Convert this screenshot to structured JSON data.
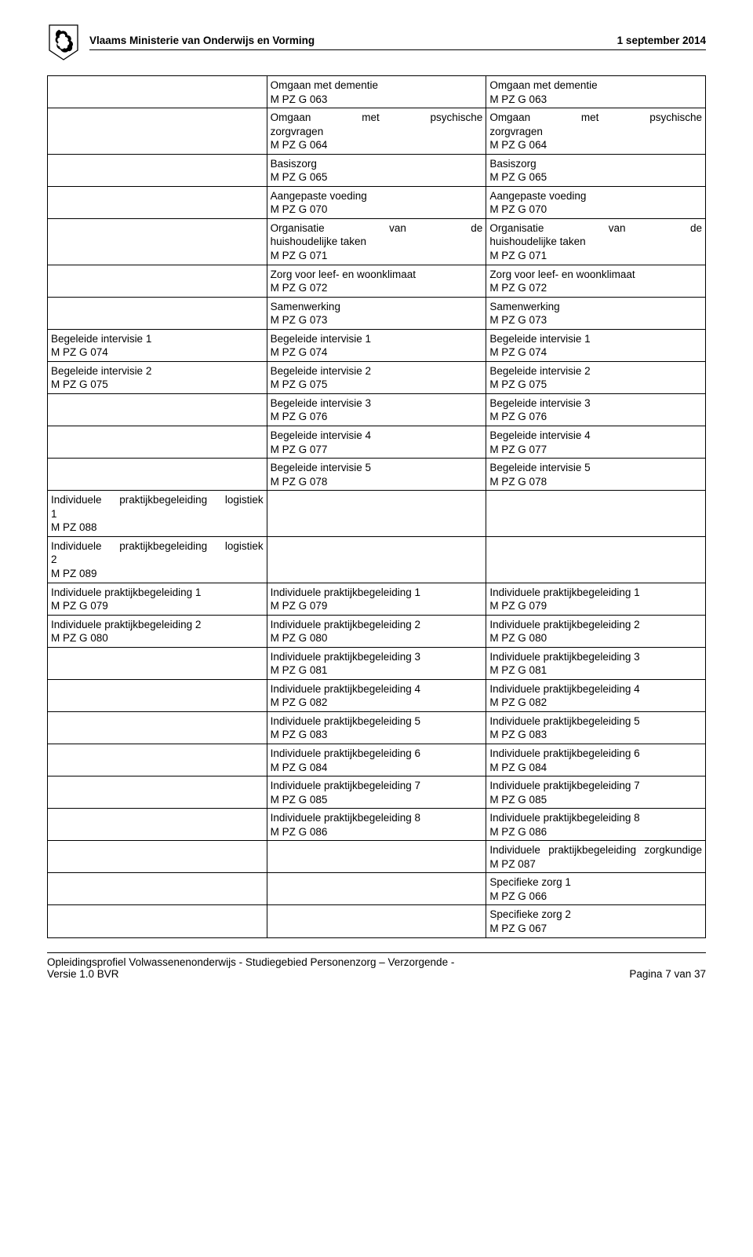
{
  "header": {
    "ministry": "Vlaams Ministerie van Onderwijs en Vorming",
    "date": "1 september 2014"
  },
  "footer": {
    "line1": "Opleidingsprofiel Volwassenenonderwijs - Studiegebied Personenzorg – Verzorgende -",
    "line2": "Versie 1.0 BVR",
    "page": "Pagina 7 van 37"
  },
  "rows": [
    {
      "c1": [],
      "c2": [
        "Omgaan met dementie",
        "M PZ G 063"
      ],
      "c3": [
        "Omgaan met dementie",
        "M PZ G 063"
      ]
    },
    {
      "c1": [],
      "c2j": "Omgaan met psychische zorgvragen",
      "c2": [
        "M PZ G 064"
      ],
      "c3j": "Omgaan met psychische zorgvragen",
      "c3": [
        "M PZ G 064"
      ]
    },
    {
      "c1": [],
      "c2": [
        "Basiszorg",
        "M PZ G 065"
      ],
      "c3": [
        "Basiszorg",
        "M PZ G 065"
      ]
    },
    {
      "c1": [],
      "c2": [
        "Aangepaste voeding",
        "M PZ G 070"
      ],
      "c3": [
        "Aangepaste voeding",
        "M PZ G 070"
      ]
    },
    {
      "c1": [],
      "c2j": "Organisatie van de huishoudelijke taken",
      "c2": [
        "M PZ G 071"
      ],
      "c3j": "Organisatie van de huishoudelijke taken",
      "c3": [
        "M PZ G 071"
      ]
    },
    {
      "c1": [],
      "c2": [
        "Zorg voor leef- en woonklimaat",
        "M PZ G 072"
      ],
      "c3": [
        "Zorg voor leef- en woonklimaat",
        "M PZ G 072"
      ]
    },
    {
      "c1": [],
      "c2": [
        "Samenwerking",
        "M PZ G 073"
      ],
      "c3": [
        "Samenwerking",
        "M PZ G 073"
      ]
    },
    {
      "c1": [
        "Begeleide intervisie 1",
        "M PZ G 074"
      ],
      "c2": [
        "Begeleide intervisie 1",
        "M PZ G 074"
      ],
      "c3": [
        "Begeleide intervisie 1",
        "M PZ G 074"
      ]
    },
    {
      "c1": [
        "Begeleide intervisie 2",
        "M PZ G 075"
      ],
      "c2": [
        "Begeleide intervisie 2",
        "M PZ G 075"
      ],
      "c3": [
        "Begeleide intervisie 2",
        "M PZ G 075"
      ]
    },
    {
      "c1": [],
      "c2": [
        "Begeleide intervisie 3",
        "M PZ G 076"
      ],
      "c3": [
        "Begeleide intervisie 3",
        "M PZ G 076"
      ]
    },
    {
      "c1": [],
      "c2": [
        "Begeleide intervisie 4",
        "M PZ G 077"
      ],
      "c3": [
        "Begeleide intervisie 4",
        "M PZ G 077"
      ]
    },
    {
      "c1": [],
      "c2": [
        "Begeleide intervisie 5",
        "M PZ G 078"
      ],
      "c3": [
        "Begeleide intervisie 5",
        "M PZ G 078"
      ]
    },
    {
      "c1j": "Individuele praktijkbegeleiding logistiek 1",
      "c1": [
        "M PZ 088"
      ],
      "c2": [],
      "c3": []
    },
    {
      "c1j": "Individuele praktijkbegeleiding logistiek 2",
      "c1": [
        "M PZ 089"
      ],
      "c2": [],
      "c3": []
    },
    {
      "c1": [
        "Individuele praktijkbegeleiding 1",
        "M PZ G 079"
      ],
      "c2": [
        "Individuele praktijkbegeleiding 1",
        "M PZ G 079"
      ],
      "c3": [
        "Individuele praktijkbegeleiding 1",
        "M PZ G 079"
      ]
    },
    {
      "c1": [
        "Individuele praktijkbegeleiding 2",
        "M PZ G 080"
      ],
      "c2": [
        "Individuele praktijkbegeleiding 2",
        "M PZ G 080"
      ],
      "c3": [
        "Individuele praktijkbegeleiding 2",
        "M PZ G 080"
      ]
    },
    {
      "c1": [],
      "c2": [
        "Individuele praktijkbegeleiding 3",
        "M PZ G 081"
      ],
      "c3": [
        "Individuele praktijkbegeleiding 3",
        "M PZ G 081"
      ]
    },
    {
      "c1": [],
      "c2": [
        "Individuele praktijkbegeleiding 4",
        "M PZ G 082"
      ],
      "c3": [
        "Individuele praktijkbegeleiding 4",
        "M PZ G 082"
      ]
    },
    {
      "c1": [],
      "c2": [
        "Individuele praktijkbegeleiding 5",
        "M PZ G 083"
      ],
      "c3": [
        "Individuele praktijkbegeleiding 5",
        "M PZ G 083"
      ]
    },
    {
      "c1": [],
      "c2": [
        "Individuele praktijkbegeleiding 6",
        "M PZ G 084"
      ],
      "c3": [
        "Individuele praktijkbegeleiding 6",
        "M PZ G 084"
      ]
    },
    {
      "c1": [],
      "c2": [
        "Individuele praktijkbegeleiding 7",
        "M PZ G 085"
      ],
      "c3": [
        "Individuele praktijkbegeleiding 7",
        "M PZ G 085"
      ]
    },
    {
      "c1": [],
      "c2": [
        "Individuele praktijkbegeleiding 8",
        "M PZ G 086"
      ],
      "c3": [
        "Individuele praktijkbegeleiding 8",
        "M PZ G 086"
      ]
    },
    {
      "c1": [],
      "c2": [],
      "c3j": "Individuele praktijkbegeleiding zorgkundige",
      "c3": [
        "M PZ 087"
      ]
    },
    {
      "c1": [],
      "c2": [],
      "c3": [
        "Specifieke zorg 1",
        "M PZ G 066"
      ]
    },
    {
      "c1": [],
      "c2": [],
      "c3": [
        "Specifieke zorg 2",
        "M PZ G 067"
      ]
    }
  ]
}
